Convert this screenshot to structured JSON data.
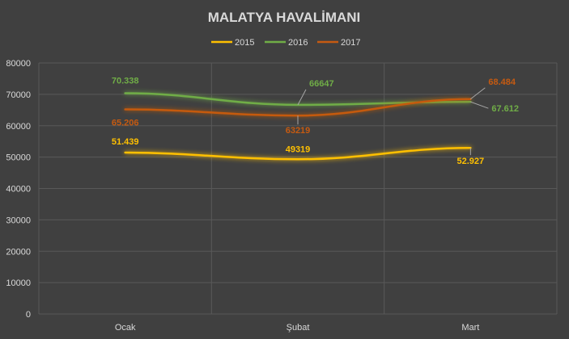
{
  "chart_data": {
    "type": "line",
    "title": "MALATYA HAVALİMANI",
    "categories": [
      "Ocak",
      "Şubat",
      "Mart"
    ],
    "ylim": [
      0,
      80000
    ],
    "yticks": [
      0,
      10000,
      20000,
      30000,
      40000,
      50000,
      60000,
      70000,
      80000
    ],
    "grid": true,
    "legend_position": "top",
    "series": [
      {
        "name": "2015",
        "color": "#ffc000",
        "values": [
          51439,
          49319,
          52927
        ],
        "labels": [
          "51.439",
          "49319",
          "52.927"
        ]
      },
      {
        "name": "2016",
        "color": "#70ad47",
        "values": [
          70338,
          66647,
          67612
        ],
        "labels": [
          "70.338",
          "66647",
          "67.612"
        ]
      },
      {
        "name": "2017",
        "color": "#c55a11",
        "values": [
          65206,
          63219,
          68484
        ],
        "labels": [
          "65.206",
          "63219",
          "68.484"
        ]
      }
    ]
  }
}
